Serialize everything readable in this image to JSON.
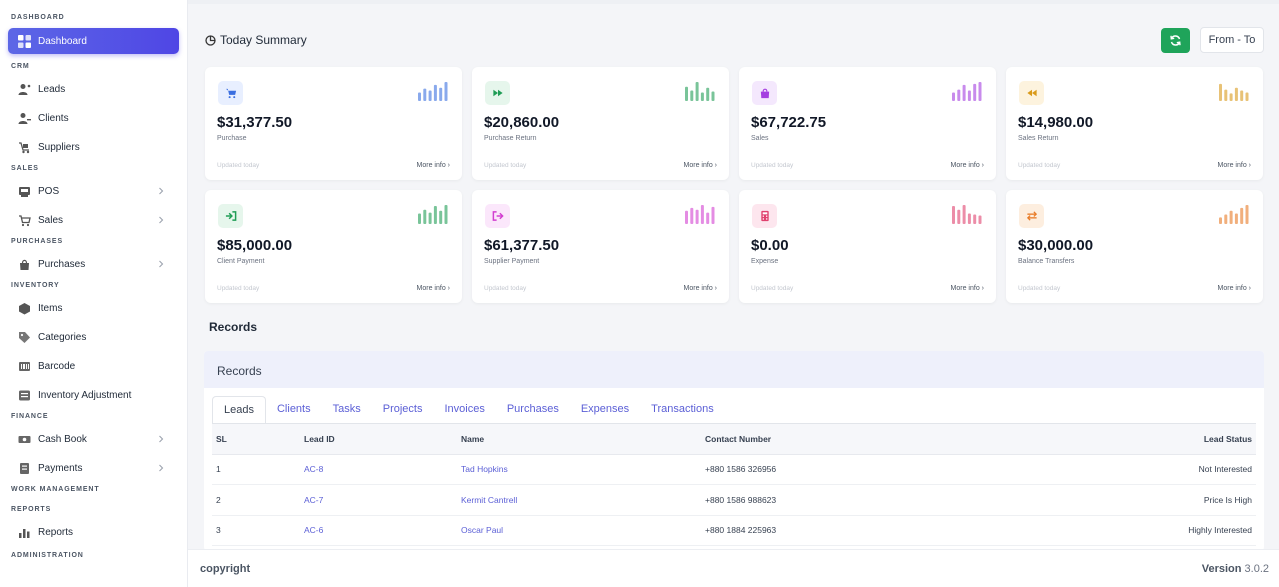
{
  "sidebar": {
    "sections": [
      {
        "title": "DASHBOARD",
        "items": [
          {
            "label": "Dashboard",
            "icon": "dashboard-icon",
            "active": true
          }
        ]
      },
      {
        "title": "CRM",
        "items": [
          {
            "label": "Leads",
            "icon": "leads-icon"
          },
          {
            "label": "Clients",
            "icon": "clients-icon"
          },
          {
            "label": "Suppliers",
            "icon": "suppliers-icon"
          }
        ]
      },
      {
        "title": "SALES",
        "items": [
          {
            "label": "POS",
            "icon": "pos-icon",
            "chevron": true
          },
          {
            "label": "Sales",
            "icon": "cart-icon",
            "chevron": true
          }
        ]
      },
      {
        "title": "PURCHASES",
        "items": [
          {
            "label": "Purchases",
            "icon": "bag-icon",
            "chevron": true
          }
        ]
      },
      {
        "title": "INVENTORY",
        "items": [
          {
            "label": "Items",
            "icon": "cube-icon"
          },
          {
            "label": "Categories",
            "icon": "tag-icon"
          },
          {
            "label": "Barcode",
            "icon": "barcode-icon"
          },
          {
            "label": "Inventory Adjustment",
            "icon": "adjust-icon"
          }
        ]
      },
      {
        "title": "FINANCE",
        "items": [
          {
            "label": "Cash Book",
            "icon": "cashbook-icon",
            "chevron": true
          },
          {
            "label": "Payments",
            "icon": "payments-icon",
            "chevron": true
          }
        ]
      },
      {
        "title": "WORK MANAGEMENT",
        "items": []
      },
      {
        "title": "REPORTS",
        "items": [
          {
            "label": "Reports",
            "icon": "chart-bar-icon"
          }
        ]
      },
      {
        "title": "ADMINISTRATION",
        "items": []
      }
    ]
  },
  "header": {
    "title": "Today Summary",
    "date_range": "From - To"
  },
  "cards": [
    {
      "value": "$31,377.50",
      "label": "Purchase",
      "updated": "Updated today",
      "more": "More info",
      "icon": "cart-icon",
      "color": "#3b6fe0",
      "bg": "#e8efff",
      "bars": [
        0.45,
        0.65,
        0.55,
        0.85,
        0.7,
        1.0
      ]
    },
    {
      "value": "$20,860.00",
      "label": "Purchase Return",
      "updated": "Updated today",
      "more": "More info",
      "icon": "fast-forward-icon",
      "color": "#1f9d55",
      "bg": "#e6f6ec",
      "bars": [
        0.75,
        0.55,
        1.0,
        0.45,
        0.7,
        0.5
      ]
    },
    {
      "value": "$67,722.75",
      "label": "Sales",
      "updated": "Updated today",
      "more": "More info",
      "icon": "shopping-bag-icon",
      "color": "#a43ee0",
      "bg": "#f4e8fd",
      "bars": [
        0.45,
        0.6,
        0.85,
        0.55,
        0.9,
        1.0
      ]
    },
    {
      "value": "$14,980.00",
      "label": "Sales Return",
      "updated": "Updated today",
      "more": "More info",
      "icon": "rewind-icon",
      "color": "#d99a1a",
      "bg": "#fdf3de",
      "bars": [
        0.9,
        0.6,
        0.4,
        0.7,
        0.55,
        0.45
      ]
    },
    {
      "value": "$85,000.00",
      "label": "Client Payment",
      "updated": "Updated today",
      "more": "More info",
      "icon": "sign-in-icon",
      "color": "#1f9d55",
      "bg": "#e6f6ec",
      "bars": [
        0.55,
        0.75,
        0.6,
        0.95,
        0.7,
        1.0
      ]
    },
    {
      "value": "$61,377.50",
      "label": "Supplier Payment",
      "updated": "Updated today",
      "more": "More info",
      "icon": "sign-out-icon",
      "color": "#d23fd0",
      "bg": "#fbe7fb",
      "bars": [
        0.7,
        0.85,
        0.75,
        1.0,
        0.6,
        0.9
      ]
    },
    {
      "value": "$0.00",
      "label": "Expense",
      "updated": "Updated today",
      "more": "More info",
      "icon": "calculator-icon",
      "color": "#e0416e",
      "bg": "#fde6ee",
      "bars": [
        0.95,
        0.75,
        1.0,
        0.55,
        0.5,
        0.45
      ]
    },
    {
      "value": "$30,000.00",
      "label": "Balance Transfers",
      "updated": "Updated today",
      "more": "More info",
      "icon": "exchange-icon",
      "color": "#e87a25",
      "bg": "#fdeedf",
      "bars": [
        0.35,
        0.5,
        0.7,
        0.55,
        0.85,
        1.0
      ]
    }
  ],
  "records": {
    "heading": "Records",
    "panel_title": "Records",
    "tabs": [
      "Leads",
      "Clients",
      "Tasks",
      "Projects",
      "Invoices",
      "Purchases",
      "Expenses",
      "Transactions"
    ],
    "columns": [
      "SL",
      "Lead ID",
      "Name",
      "Contact Number",
      "Lead Status"
    ],
    "rows": [
      {
        "sl": "1",
        "id": "AC-8",
        "name": "Tad Hopkins",
        "contact": "+880 1586 326956",
        "status": "Not Interested"
      },
      {
        "sl": "2",
        "id": "AC-7",
        "name": "Kermit Cantrell",
        "contact": "+880 1586 988623",
        "status": "Price Is High"
      },
      {
        "sl": "3",
        "id": "AC-6",
        "name": "Oscar Paul",
        "contact": "+880 1884 225963",
        "status": "Highly Interested"
      }
    ]
  },
  "footer": {
    "copyright": "copyright",
    "version_label": "Version",
    "version": "3.0.2"
  },
  "colors": {
    "accent": "#4f46e5",
    "refresh": "#1fa45a",
    "link": "#5b5fd6"
  }
}
